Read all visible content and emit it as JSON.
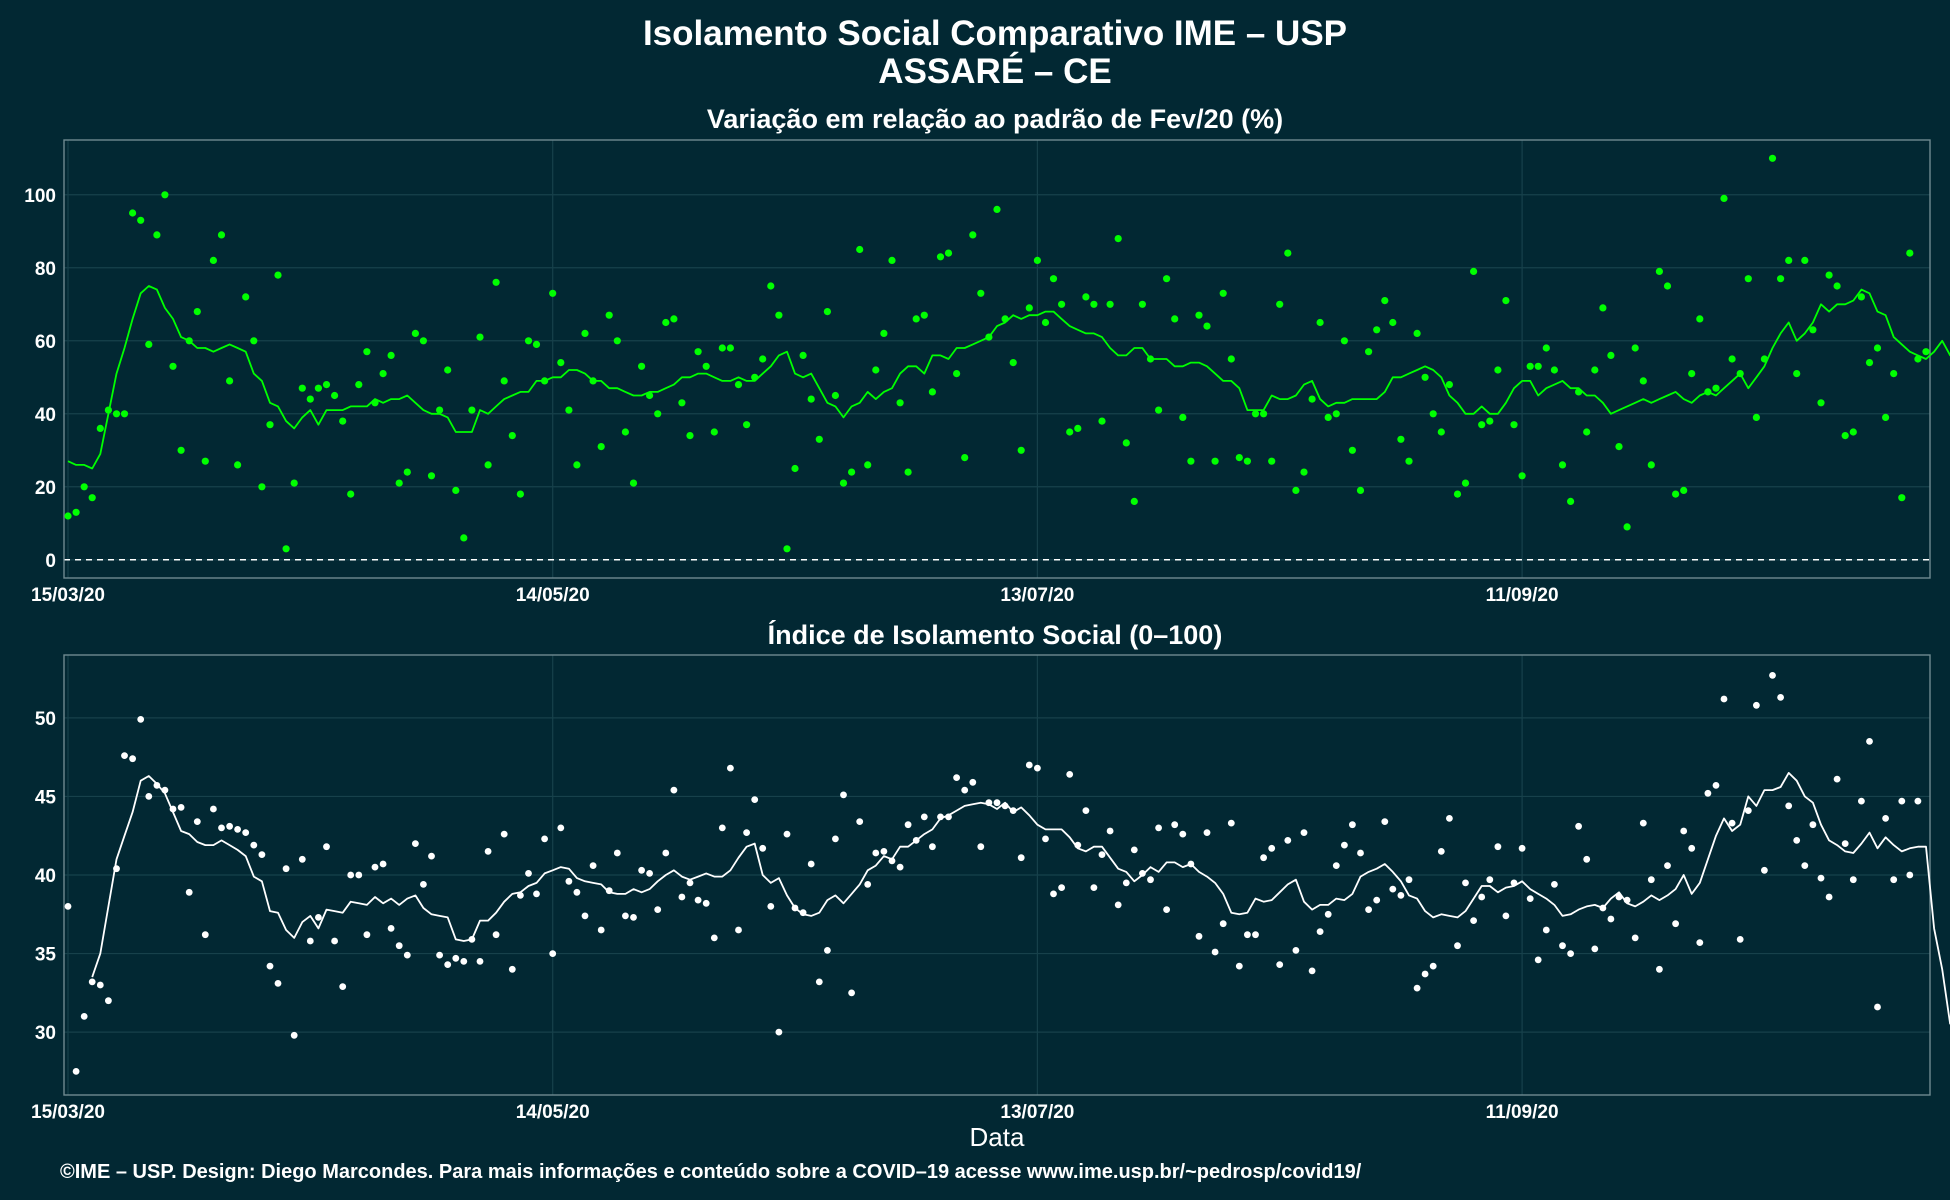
{
  "title": "Isolamento Social Comparativo IME – USP",
  "location": "ASSARÉ – CE",
  "xlabel": "Data",
  "caption": "©IME – USP. Design: Diego Marcondes. Para mais informações e conteúdo sobre a COVID–19 acesse www.ime.usp.br/~pedrosp/covid19/",
  "colors": {
    "background": "#022833",
    "panel_border": "#6f8a91",
    "grid": "#17414b",
    "top_series": "#00ff00",
    "bottom_series": "#ffffff"
  },
  "chart_data": [
    {
      "type": "scatter",
      "title": "Variação em relação ao padrão de Fev/20 (%)",
      "xlabel": "",
      "ylabel": "",
      "x_start": "2020-03-15",
      "x_end": "2020-10-31",
      "x_ticks": [
        "15/03/20",
        "14/05/20",
        "13/07/20",
        "11/09/20"
      ],
      "y_ticks": [
        0,
        20,
        40,
        60,
        80,
        100
      ],
      "ylim": [
        -5,
        115
      ],
      "reference_line": 0,
      "grid": true,
      "series": [
        {
          "kind": "points",
          "values": [
            12,
            13,
            20,
            17,
            36,
            41,
            40,
            40,
            95,
            93,
            59,
            89,
            100,
            53,
            30,
            60,
            68,
            27,
            82,
            89,
            49,
            26,
            72,
            60,
            20,
            37,
            78,
            3,
            21,
            47,
            44,
            47,
            48,
            45,
            38,
            18,
            48,
            57,
            43,
            51,
            56,
            21,
            24,
            62,
            60,
            23,
            41,
            52,
            19,
            6,
            41,
            61,
            26,
            76,
            49,
            34,
            18,
            60,
            59,
            49,
            73,
            54,
            41,
            26,
            62,
            49,
            31,
            67,
            60,
            35,
            21,
            53,
            45,
            40,
            65,
            66,
            43,
            34,
            57,
            53,
            35,
            58,
            58,
            48,
            37,
            50,
            55,
            75,
            67,
            3,
            25,
            56,
            44,
            33,
            68,
            45,
            21,
            24,
            85,
            26,
            52,
            62,
            82,
            43,
            24,
            66,
            67,
            46,
            83,
            84,
            51,
            28,
            89,
            73,
            61,
            96,
            66,
            54,
            30,
            69,
            82,
            65,
            77,
            70,
            35,
            36,
            72,
            70,
            38,
            70,
            88,
            32,
            16,
            70,
            55,
            41,
            77,
            66,
            39,
            27,
            67,
            64,
            27,
            73,
            55,
            28,
            27,
            40,
            40,
            27,
            70,
            84,
            19,
            24,
            44,
            65,
            39,
            40,
            60,
            30,
            19,
            57,
            63,
            71,
            65,
            33,
            27,
            62,
            50,
            40,
            35,
            48,
            18,
            21,
            79,
            37,
            38,
            52,
            71,
            37,
            23,
            53,
            53,
            58,
            52,
            26,
            16,
            46,
            35,
            52,
            69,
            56,
            31,
            9,
            58,
            49,
            26,
            79,
            75,
            18,
            19,
            51,
            66,
            46,
            47,
            99,
            55,
            51,
            77,
            39,
            55,
            110,
            77,
            82,
            51,
            82,
            63,
            43,
            78,
            75,
            34,
            35,
            72,
            54,
            58,
            39,
            51,
            17,
            84,
            55,
            57
          ]
        },
        {
          "kind": "line",
          "values": [
            27,
            26,
            26,
            25,
            29,
            40,
            51,
            58,
            66,
            73,
            75,
            74,
            69,
            66,
            61,
            60,
            58,
            58,
            57,
            58,
            59,
            58,
            57,
            51,
            49,
            43,
            42,
            38,
            36,
            39,
            41,
            37,
            41,
            41,
            41,
            42,
            42,
            42,
            44,
            43,
            44,
            44,
            45,
            43,
            41,
            40,
            40,
            39,
            35,
            35,
            35,
            41,
            40,
            42,
            44,
            45,
            46,
            46,
            49,
            49,
            50,
            50,
            52,
            52,
            51,
            49,
            49,
            47,
            47,
            46,
            45,
            45,
            46,
            46,
            47,
            48,
            50,
            50,
            51,
            51,
            50,
            49,
            49,
            50,
            49,
            49,
            51,
            53,
            56,
            57,
            51,
            50,
            51,
            47,
            43,
            42,
            39,
            42,
            43,
            46,
            44,
            46,
            47,
            51,
            53,
            53,
            51,
            56,
            56,
            55,
            58,
            58,
            59,
            60,
            61,
            64,
            65,
            67,
            66,
            67,
            67,
            68,
            68,
            66,
            64,
            63,
            62,
            62,
            61,
            58,
            56,
            56,
            58,
            58,
            55,
            55,
            55,
            53,
            53,
            54,
            54,
            53,
            51,
            49,
            49,
            47,
            41,
            41,
            41,
            45,
            44,
            44,
            45,
            48,
            49,
            44,
            42,
            43,
            43,
            44,
            44,
            44,
            44,
            46,
            50,
            50,
            51,
            52,
            53,
            52,
            50,
            45,
            43,
            40,
            40,
            42,
            40,
            40,
            43,
            47,
            49,
            49,
            45,
            47,
            48,
            49,
            47,
            47,
            45,
            45,
            43,
            40,
            41,
            42,
            43,
            44,
            43,
            44,
            45,
            46,
            44,
            43,
            45,
            46,
            45,
            47,
            49,
            51,
            47,
            50,
            53,
            58,
            62,
            65,
            60,
            62,
            65,
            70,
            68,
            70,
            70,
            71,
            74,
            73,
            68,
            67,
            61,
            59,
            57,
            56,
            55,
            57,
            60,
            56,
            56,
            58,
            57,
            57,
            57,
            58,
            57
          ]
        }
      ]
    },
    {
      "type": "scatter",
      "title": "Índice de Isolamento Social (0–100)",
      "xlabel": "Data",
      "ylabel": "",
      "x_start": "2020-03-15",
      "x_end": "2020-10-31",
      "x_ticks": [
        "15/03/20",
        "14/05/20",
        "13/07/20",
        "11/09/20"
      ],
      "y_ticks": [
        30,
        35,
        40,
        45,
        50
      ],
      "ylim": [
        26,
        54
      ],
      "grid": true,
      "series": [
        {
          "kind": "points",
          "values": [
            38,
            27.5,
            31,
            33.2,
            33,
            32,
            40.4,
            47.6,
            47.4,
            49.9,
            45,
            45.7,
            45.4,
            44.2,
            44.3,
            38.9,
            43.4,
            36.2,
            44.2,
            43,
            43.1,
            42.9,
            42.7,
            41.9,
            41.3,
            34.2,
            33.1,
            40.4,
            29.8,
            41,
            35.8,
            37.3,
            41.8,
            35.8,
            32.9,
            40,
            40,
            36.2,
            40.5,
            40.7,
            36.6,
            35.5,
            34.9,
            42,
            39.4,
            41.2,
            34.9,
            34.3,
            34.7,
            34.5,
            35.9,
            34.5,
            41.5,
            36.2,
            42.6,
            34,
            38.7,
            40.1,
            38.8,
            42.3,
            35,
            43,
            39.6,
            38.9,
            37.4,
            40.6,
            36.5,
            39,
            41.4,
            37.4,
            37.3,
            40.3,
            40.1,
            37.8,
            41.4,
            45.4,
            38.6,
            39.5,
            38.4,
            38.2,
            36,
            43,
            46.8,
            36.5,
            42.7,
            44.8,
            41.7,
            38,
            30,
            42.6,
            37.9,
            37.6,
            40.7,
            33.2,
            35.2,
            42.3,
            45.1,
            32.5,
            43.4,
            39.4,
            41.4,
            41.5,
            40.9,
            40.5,
            43.2,
            42.2,
            43.7,
            41.8,
            43.7,
            43.7,
            46.2,
            45.4,
            45.9,
            41.8,
            44.6,
            44.6,
            44.4,
            44.1,
            41.1,
            47,
            46.8,
            42.3,
            38.8,
            39.2,
            46.4,
            41.9,
            44.1,
            39.2,
            41.3,
            42.8,
            38.1,
            39.5,
            41.6,
            40.1,
            39.7,
            43,
            37.8,
            43.2,
            42.6,
            40.7,
            36.1,
            42.7,
            35.1,
            36.9,
            43.3,
            34.2,
            36.2,
            36.2,
            41.1,
            41.7,
            34.3,
            42.2,
            35.2,
            42.7,
            33.9,
            36.4,
            37.5,
            40.6,
            41.9,
            43.2,
            41.4,
            37.8,
            38.4,
            43.4,
            39.1,
            38.7,
            39.7,
            32.8,
            33.7,
            34.2,
            41.5,
            43.6,
            35.5,
            39.5,
            37.1,
            38.6,
            39.7,
            41.8,
            37.4,
            39.5,
            41.7,
            38.5,
            34.6,
            36.5,
            39.4,
            35.5,
            35,
            43.1,
            41,
            35.3,
            37.9,
            37.2,
            38.6,
            38.4,
            36,
            43.3,
            39.7,
            34,
            40.6,
            36.9,
            42.8,
            41.7,
            35.7,
            45.2,
            45.7,
            51.2,
            43.3,
            35.9,
            44.1,
            50.8,
            40.3,
            52.7,
            51.3,
            44.4,
            42.2,
            40.6,
            43.2,
            39.8,
            38.6,
            46.1,
            42,
            39.7,
            44.7,
            48.5,
            31.6,
            43.6,
            39.7,
            44.7,
            40,
            44.7
          ]
        },
        {
          "kind": "line",
          "values": [
            null,
            null,
            null,
            33.5,
            35,
            38,
            41,
            42.5,
            44,
            46,
            46.3,
            45.8,
            45.2,
            44,
            42.8,
            42.6,
            42.1,
            41.9,
            41.9,
            42.2,
            41.9,
            41.6,
            41.2,
            39.9,
            39.6,
            37.7,
            37.6,
            36.5,
            36,
            37,
            37.4,
            36.6,
            37.8,
            37.7,
            37.6,
            38.3,
            38.2,
            38.1,
            38.6,
            38.2,
            38.5,
            38.1,
            38.5,
            38.7,
            37.9,
            37.5,
            37.4,
            37.3,
            35.9,
            35.8,
            35.9,
            37.1,
            37.1,
            37.6,
            38.3,
            38.8,
            38.9,
            39.3,
            39.5,
            40.1,
            40.3,
            40.5,
            40.4,
            39.8,
            39.6,
            39.5,
            39.4,
            38.9,
            38.8,
            38.8,
            39.1,
            38.9,
            39.1,
            39.6,
            40,
            40.3,
            39.9,
            39.7,
            39.9,
            40.1,
            39.9,
            39.9,
            40.3,
            41.1,
            41.8,
            42,
            40,
            39.5,
            39.8,
            38.7,
            37.9,
            37.5,
            37.4,
            37.6,
            38.4,
            38.7,
            38.2,
            38.8,
            39.4,
            40.3,
            40.6,
            41.2,
            41,
            41.8,
            41.8,
            42.2,
            42.6,
            42.9,
            43.6,
            43.8,
            44.1,
            44.4,
            44.5,
            44.6,
            44.5,
            44.2,
            44.6,
            44,
            44.3,
            43.8,
            43.2,
            42.9,
            42.9,
            42.9,
            42.4,
            41.7,
            41.5,
            41.8,
            41.8,
            41.1,
            40.4,
            40.2,
            39.6,
            40,
            40.5,
            40.2,
            40.8,
            40.8,
            40.5,
            40.7,
            40.2,
            39.9,
            39.5,
            38.8,
            37.6,
            37.5,
            37.6,
            38.5,
            38.3,
            38.4,
            38.9,
            39.4,
            39.7,
            38.3,
            37.8,
            38.1,
            38.1,
            38.5,
            38.4,
            38.8,
            39.9,
            40.2,
            40.4,
            40.7,
            40.2,
            39.6,
            38.7,
            38.5,
            37.7,
            37.3,
            37.5,
            37.4,
            37.3,
            37.7,
            38.5,
            39.3,
            39.3,
            38.9,
            39.2,
            39.3,
            39.6,
            39.1,
            38.8,
            38.5,
            38.1,
            37.4,
            37.5,
            37.8,
            38,
            38.1,
            37.9,
            38.5,
            38.9,
            38.2,
            38,
            38.3,
            38.7,
            38.4,
            38.7,
            39.1,
            40,
            38.8,
            39.5,
            41,
            42.5,
            43.6,
            42.8,
            43.2,
            45,
            44.4,
            45.4,
            45.4,
            45.6,
            46.5,
            46,
            45,
            44.6,
            43.2,
            42.2,
            41.9,
            41.5,
            41.4,
            42,
            42.7,
            41.7,
            42.4,
            41.9,
            41.5,
            41.7,
            41.8,
            41.8,
            36.6,
            34,
            30.5
          ]
        }
      ]
    }
  ]
}
